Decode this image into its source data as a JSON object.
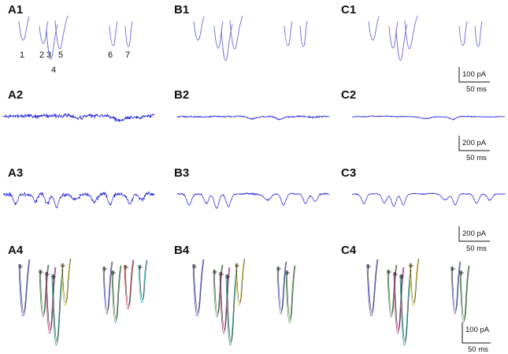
{
  "panels": [
    {
      "id": "A1",
      "label": "A1",
      "row": "spikes",
      "col": "A"
    },
    {
      "id": "B1",
      "label": "B1",
      "row": "spikes",
      "col": "B"
    },
    {
      "id": "C1",
      "label": "C1",
      "row": "spikes",
      "col": "C"
    },
    {
      "id": "A2",
      "label": "A2",
      "row": "noise_small",
      "col": "A"
    },
    {
      "id": "B2",
      "label": "B2",
      "row": "noise_small",
      "col": "B"
    },
    {
      "id": "C2",
      "label": "C2",
      "row": "noise_small",
      "col": "C"
    },
    {
      "id": "A3",
      "label": "A3",
      "row": "noise_big",
      "col": "A"
    },
    {
      "id": "B3",
      "label": "B3",
      "row": "noise_big",
      "col": "B"
    },
    {
      "id": "C3",
      "label": "C3",
      "row": "noise_big",
      "col": "C"
    },
    {
      "id": "A4",
      "label": "A4",
      "row": "sorted",
      "col": "A"
    },
    {
      "id": "B4",
      "label": "B4",
      "row": "sorted",
      "col": "B"
    },
    {
      "id": "C4",
      "label": "C4",
      "row": "sorted",
      "col": "C"
    }
  ],
  "spike_numbers": [
    "1",
    "2",
    "3",
    "4",
    "5",
    "6",
    "7"
  ],
  "scalebars": [
    {
      "name": "scalebar-row1",
      "current": "100 pA",
      "time": "50 ms"
    },
    {
      "name": "scalebar-row2",
      "current": "200 pA",
      "time": "50 ms"
    },
    {
      "name": "scalebar-row3",
      "current": "200 pA",
      "time": "50 ms"
    },
    {
      "name": "scalebar-row4",
      "current": "100 pA",
      "time": "50 ms"
    }
  ],
  "colors": {
    "trace_blue": "#1a1adb",
    "spike_trace": "#6b6bd6",
    "black": "#111111",
    "sorted_palette": [
      "#5b5bd0",
      "#3c8c3c",
      "#c03a8a",
      "#d6c61e",
      "#2a9a8a",
      "#b83232",
      "#2ab8c8",
      "#7a2a9a"
    ]
  }
}
